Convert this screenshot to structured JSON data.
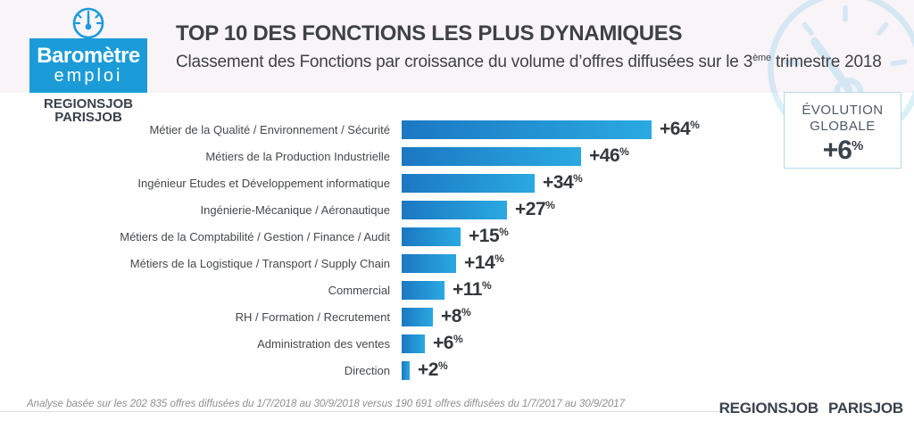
{
  "logo": {
    "line1": "Baromètre",
    "line2": "emploi",
    "brand1": "REGIONSJOB",
    "brand2": "PARISJOB"
  },
  "header": {
    "title": "TOP 10 DES FONCTIONS LES PLUS DYNAMIQUES",
    "subtitle_prefix": "Classement des Fonctions par croissance du volume d’offres diffusées sur le 3",
    "subtitle_sup": "ème",
    "subtitle_suffix": " trimestre 2018"
  },
  "evolution_box": {
    "label_line1": "ÉVOLUTION",
    "label_line2": "GLOBALE",
    "value": "+6",
    "unit": "%"
  },
  "chart_data": {
    "type": "bar",
    "orientation": "horizontal",
    "title": "TOP 10 DES FONCTIONS LES PLUS DYNAMIQUES",
    "categories": [
      "Métier de la Qualité / Environnement / Sécurité",
      "Métiers de la Production Industrielle",
      "Ingénieur Etudes et Développement informatique",
      "Ingénierie-Mécanique / Aéronautique",
      "Métiers de la Comptabilité / Gestion / Finance / Audit",
      "Métiers de la Logistique / Transport / Supply Chain",
      "Commercial",
      "RH / Formation / Recrutement",
      "Administration des ventes",
      "Direction"
    ],
    "values": [
      64,
      46,
      34,
      27,
      15,
      14,
      11,
      8,
      6,
      2
    ],
    "value_prefix": "+",
    "value_unit": "%",
    "xlim": [
      0,
      64
    ],
    "legend": "none",
    "grid": false,
    "bar_color_start": "#1b78c2",
    "bar_color_end": "#2aa9e1"
  },
  "footer": {
    "note": "Analyse basée sur les 202 835 offres diffusées du 1/7/2018 au 30/9/2018 versus 190 691 offres diffusées du 1/7/2017 au 30/9/2017",
    "brand1": "REGIONSJOB",
    "brand2": "PARISJOB"
  },
  "colors": {
    "header_band": "#f9f4f8",
    "logo_blue": "#1b9cd8",
    "brand_navy": "#39424d",
    "title_text": "#3e4246",
    "evolution_border": "#b5d9ec"
  }
}
